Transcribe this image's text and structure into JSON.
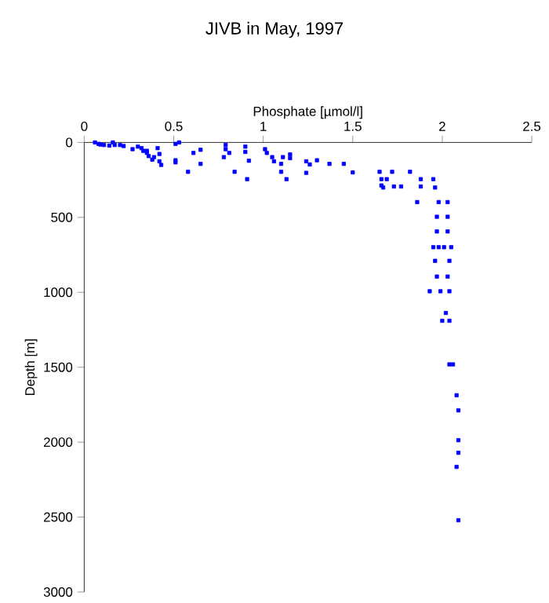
{
  "chart_data": {
    "type": "scatter",
    "title": "JIVB in May, 1997",
    "xlabel": "Phosphate [µmol/l]",
    "ylabel": "Depth [m]",
    "xlim": [
      0,
      2.5
    ],
    "xticks": [
      0,
      0.5,
      1,
      1.5,
      2,
      2.5
    ],
    "ylim": [
      3000,
      0
    ],
    "yticks": [
      0,
      500,
      1000,
      1500,
      2000,
      2500,
      3000
    ],
    "marker": "square",
    "grid": false,
    "series": [
      {
        "color": "#0000ff",
        "x": [
          0.06,
          0.08,
          0.09,
          0.11,
          0.14,
          0.16,
          0.17,
          0.2,
          0.22,
          0.27,
          0.3,
          0.32,
          0.33,
          0.35,
          0.36,
          0.38,
          0.39,
          0.41,
          0.42,
          0.42,
          0.43,
          0.35,
          0.51,
          0.53,
          0.51,
          0.51,
          0.58,
          0.61,
          0.65,
          0.65,
          0.79,
          0.79,
          0.81,
          0.78,
          0.84,
          0.9,
          0.9,
          0.92,
          0.91,
          1.01,
          1.02,
          1.05,
          1.06,
          1.1,
          1.1,
          1.13,
          1.11,
          1.15,
          1.15,
          1.24,
          1.24,
          1.26,
          1.3,
          1.37,
          1.45,
          1.5,
          1.65,
          1.66,
          1.69,
          1.67,
          1.66,
          1.72,
          1.73,
          1.77,
          1.82,
          1.88,
          1.88,
          1.95,
          1.86,
          1.96,
          1.98,
          2.03,
          1.97,
          2.03,
          1.97,
          2.03,
          1.95,
          1.98,
          2.01,
          2.05,
          1.96,
          2.04,
          1.97,
          2.03,
          1.93,
          1.99,
          2.04,
          2.02,
          2.0,
          2.04,
          2.04,
          2.06,
          2.08,
          2.09,
          2.09,
          2.09,
          2.08,
          2.09
        ],
        "values": [
          0,
          10,
          14,
          17,
          21,
          0,
          17,
          17,
          24,
          45,
          28,
          38,
          56,
          70,
          91,
          115,
          98,
          38,
          77,
          126,
          150,
          56,
          10,
          0,
          133,
          119,
          196,
          70,
          49,
          143,
          17,
          45,
          70,
          98,
          196,
          28,
          63,
          122,
          245,
          45,
          70,
          98,
          126,
          143,
          196,
          245,
          98,
          80,
          105,
          126,
          203,
          147,
          119,
          143,
          143,
          200,
          196,
          245,
          245,
          301,
          287,
          196,
          294,
          294,
          196,
          245,
          294,
          245,
          398,
          301,
          398,
          398,
          496,
          496,
          594,
          594,
          699,
          699,
          699,
          699,
          790,
          790,
          895,
          895,
          993,
          993,
          993,
          1138,
          1190,
          1190,
          1481,
          1481,
          1687,
          1788,
          1987,
          2071,
          2165,
          2521
        ]
      }
    ]
  }
}
